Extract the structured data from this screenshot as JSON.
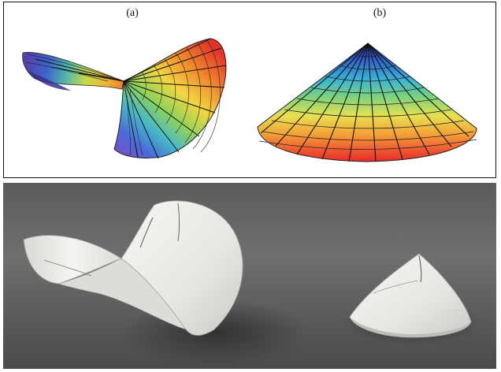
{
  "figure": {
    "panel_a": {
      "label": "(a)"
    },
    "panel_b": {
      "label": "(b)"
    }
  }
}
